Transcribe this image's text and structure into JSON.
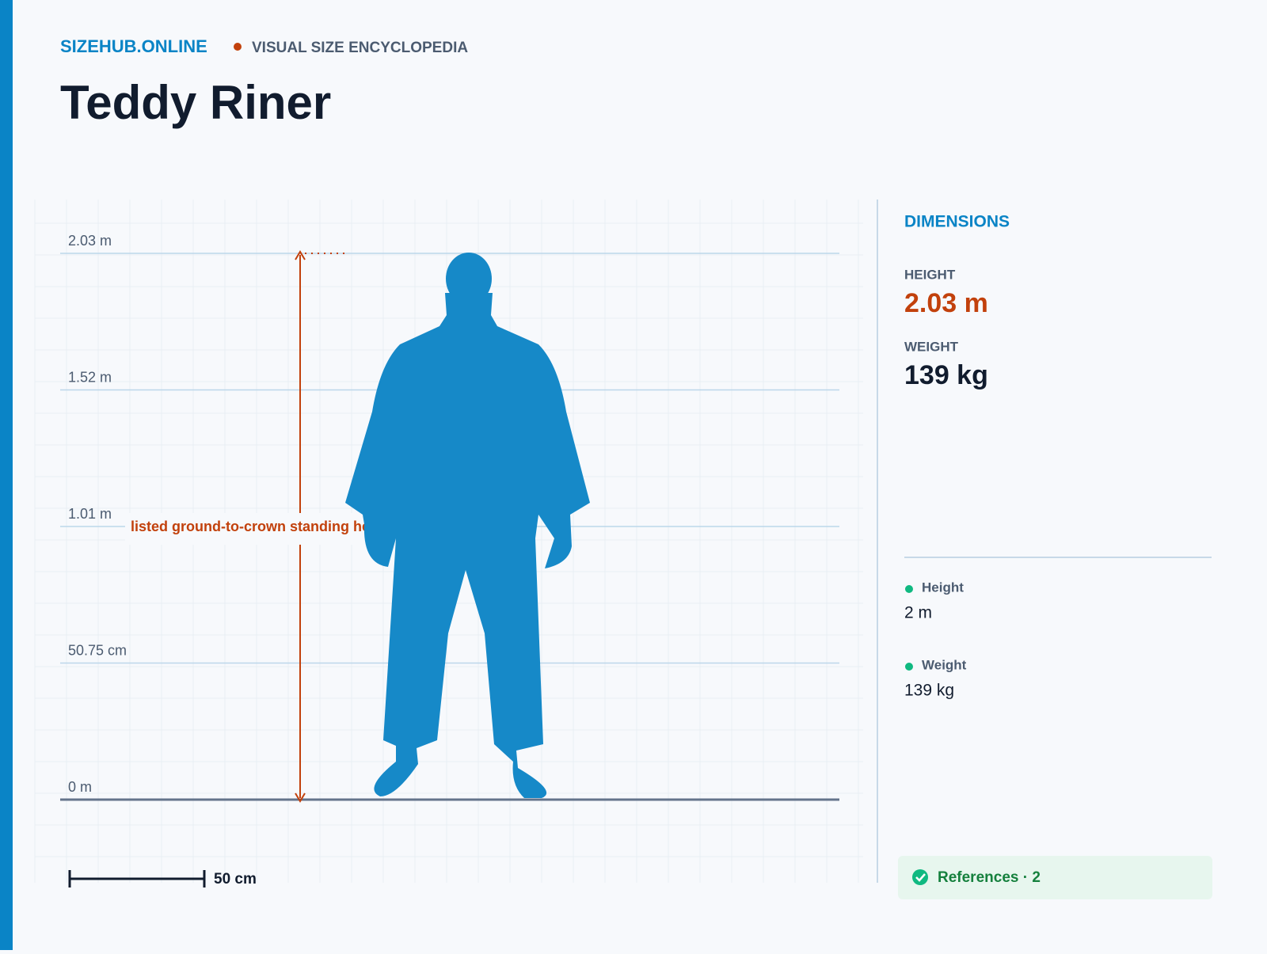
{
  "header": {
    "brand": "SIZEHUB.ONLINE",
    "tagline": "VISUAL SIZE ENCYCLOPEDIA",
    "title": "Teddy Riner"
  },
  "scale": {
    "ticks": [
      "2.03 m",
      "1.52 m",
      "1.01 m",
      "50.75 cm",
      "0 m"
    ],
    "annotation": "listed ground-to-crown standing height",
    "scale_bar": "50 cm"
  },
  "sidebar": {
    "heading": "DIMENSIONS",
    "stats": [
      {
        "label": "HEIGHT",
        "value": "2.03 m"
      },
      {
        "label": "WEIGHT",
        "value": "139 kg"
      }
    ],
    "facts": [
      {
        "label": "Height",
        "value": "2 m"
      },
      {
        "label": "Weight",
        "value": "139 kg"
      }
    ],
    "references": "References · 2"
  }
}
